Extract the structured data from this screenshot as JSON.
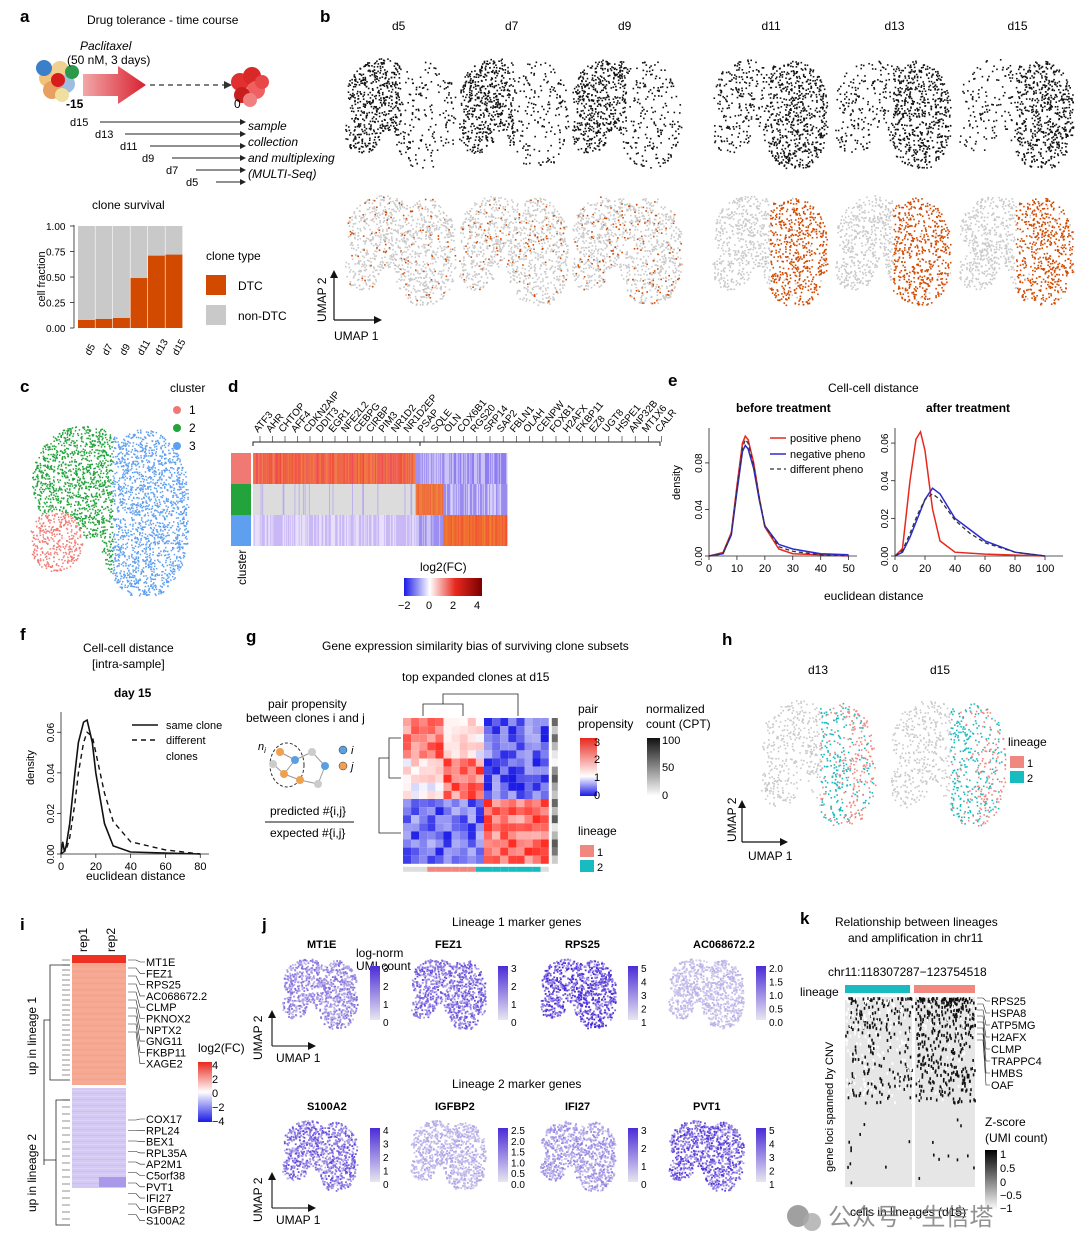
{
  "colors": {
    "dtc": "#d24a00",
    "nondtc": "#c9c9c9",
    "cl1": "#f07a73",
    "cl2": "#22a33b",
    "cl3": "#5e9ff0",
    "lin1": "#f08880",
    "lin2": "#18bcc0",
    "red": "#e8281e",
    "blue": "#2b2bd4",
    "purple": "#6a3fe0"
  },
  "panels": {
    "a": "a",
    "b": "b",
    "c": "c",
    "d": "d",
    "e": "e",
    "f": "f",
    "g": "g",
    "h": "h",
    "i": "i",
    "j": "j",
    "k": "k"
  },
  "a": {
    "title": "Drug tolerance - time course",
    "drug": "Paclitaxel",
    "dose": "(50 nM, 3 days)",
    "start": "-15",
    "end": "0",
    "days": [
      "d15",
      "d13",
      "d11",
      "d9",
      "d7",
      "d5"
    ],
    "collection": [
      "sample",
      "collection",
      "and multiplexing",
      "(MULTI-Seq)"
    ],
    "chart_data": {
      "type": "bar",
      "title": "clone survival",
      "ylabel": "cell fraction",
      "categories": [
        "d5",
        "d7",
        "d9",
        "d11",
        "d13",
        "d15"
      ],
      "series": [
        {
          "name": "DTC",
          "values": [
            0.08,
            0.09,
            0.1,
            0.49,
            0.71,
            0.72
          ]
        },
        {
          "name": "non-DTC",
          "values": [
            0.92,
            0.91,
            0.9,
            0.51,
            0.29,
            0.28
          ]
        }
      ],
      "yticks": [
        "0.00",
        "0.25",
        "0.50",
        "0.75",
        "1.00"
      ],
      "ylim": [
        0,
        1
      ]
    },
    "legend_title": "clone type",
    "legend": [
      "DTC",
      "non-DTC"
    ]
  },
  "b": {
    "days": [
      "d5",
      "d7",
      "d9",
      "d11",
      "d13",
      "d15"
    ],
    "umap1": "UMAP 1",
    "umap2": "UMAP 2"
  },
  "c": {
    "legend_title": "cluster",
    "clusters": [
      "1",
      "2",
      "3"
    ]
  },
  "d": {
    "genes_left": [
      "ATF3",
      "AHR",
      "CHTOP",
      "AFF4",
      "CDKN2AIP",
      "DDIT3",
      "EGR1",
      "NFE2L2",
      "CEBPG",
      "CIRBP",
      "PIM3",
      "NR1D2",
      "NR1D2EP"
    ],
    "genes_right": [
      "PSAP",
      "SQLE",
      "OLN",
      "COX6B1",
      "RGS20",
      "SRP14",
      "SAP2",
      "FBLN1",
      "OLAH",
      "CENPW",
      "FOXB1",
      "H2AFX",
      "FKBP11",
      "EZ8",
      "UGT8",
      "HSPE1",
      "ANP32B",
      "MT1X6",
      "CALR"
    ],
    "ylabel": "cluster",
    "legend_title": "log2(FC)",
    "ticks": [
      "−2",
      "0",
      "2",
      "4"
    ]
  },
  "e": {
    "title": "Cell-cell distance",
    "sub1": "before treatment",
    "sub2": "after treatment",
    "legend": [
      "positive pheno",
      "negative pheno",
      "different pheno"
    ],
    "xlabel": "euclidean distance",
    "ylabel": "density",
    "chart_data": [
      {
        "type": "line",
        "title": "before treatment",
        "xticks": [
          "0",
          "10",
          "20",
          "30",
          "40",
          "50"
        ],
        "yticks": [
          "0.00",
          "0.04",
          "0.08"
        ],
        "series": [
          {
            "name": "positive pheno",
            "x": [
              0,
              5,
              8,
              10,
              12,
              13,
              14,
              16,
              18,
              20,
              25,
              30,
              40,
              50
            ],
            "y": [
              0,
              0.003,
              0.02,
              0.06,
              0.097,
              0.103,
              0.1,
              0.08,
              0.05,
              0.025,
              0.006,
              0.002,
              0.001,
              0
            ]
          },
          {
            "name": "negative pheno",
            "x": [
              0,
              5,
              8,
              10,
              12,
              13,
              14,
              16,
              18,
              20,
              25,
              30,
              40,
              50
            ],
            "y": [
              0,
              0.002,
              0.018,
              0.055,
              0.09,
              0.095,
              0.092,
              0.075,
              0.048,
              0.026,
              0.01,
              0.006,
              0.002,
              0.001
            ]
          },
          {
            "name": "different pheno",
            "x": [
              0,
              5,
              8,
              10,
              12,
              13,
              14,
              16,
              18,
              20,
              25,
              30,
              40,
              50
            ],
            "y": [
              0,
              0.002,
              0.019,
              0.058,
              0.093,
              0.1,
              0.097,
              0.078,
              0.05,
              0.026,
              0.008,
              0.004,
              0.001,
              0
            ]
          }
        ]
      },
      {
        "type": "line",
        "title": "after treatment",
        "xticks": [
          "0",
          "20",
          "40",
          "60",
          "80",
          "100"
        ],
        "yticks": [
          "0.00",
          "0.02",
          "0.04",
          "0.06"
        ],
        "series": [
          {
            "name": "positive pheno",
            "x": [
              0,
              5,
              10,
              14,
              17,
              20,
              25,
              30,
              40,
              60,
              100
            ],
            "y": [
              0,
              0.004,
              0.04,
              0.062,
              0.066,
              0.056,
              0.025,
              0.008,
              0.002,
              0.001,
              0
            ]
          },
          {
            "name": "negative pheno",
            "x": [
              0,
              5,
              10,
              15,
              20,
              25,
              30,
              40,
              50,
              60,
              80,
              100
            ],
            "y": [
              0,
              0.002,
              0.01,
              0.02,
              0.03,
              0.036,
              0.033,
              0.02,
              0.014,
              0.008,
              0.002,
              0
            ]
          },
          {
            "name": "different pheno",
            "x": [
              0,
              5,
              10,
              15,
              20,
              25,
              30,
              40,
              50,
              60,
              80,
              100
            ],
            "y": [
              0,
              0.003,
              0.012,
              0.022,
              0.03,
              0.033,
              0.03,
              0.019,
              0.012,
              0.007,
              0.002,
              0
            ]
          }
        ]
      }
    ]
  },
  "f": {
    "title": "Cell-cell distance",
    "subtitle": "[intra-sample]",
    "day": "day 15",
    "legend": [
      "same clone",
      "different",
      "clones"
    ],
    "xlabel": "euclidean distance",
    "ylabel": "density",
    "chart_data": {
      "type": "line",
      "xticks": [
        "0",
        "20",
        "40",
        "60",
        "80"
      ],
      "yticks": [
        "0.00",
        "0.02",
        "0.04",
        "0.06"
      ],
      "series": [
        {
          "name": "same clone",
          "x": [
            0,
            1,
            2,
            3,
            5,
            8,
            10,
            13,
            15,
            18,
            20,
            25,
            30,
            40,
            80
          ],
          "y": [
            0,
            0.006,
            0.001,
            0.004,
            0.015,
            0.04,
            0.055,
            0.065,
            0.066,
            0.055,
            0.04,
            0.015,
            0.004,
            0.001,
            0
          ]
        },
        {
          "name": "different clones",
          "x": [
            0,
            3,
            5,
            8,
            10,
            13,
            15,
            18,
            20,
            25,
            30,
            40,
            60,
            80
          ],
          "y": [
            0,
            0.002,
            0.008,
            0.025,
            0.04,
            0.055,
            0.06,
            0.058,
            0.05,
            0.03,
            0.016,
            0.006,
            0.002,
            0
          ]
        }
      ]
    }
  },
  "g": {
    "title": "Gene expression similarity bias of surviving clone subsets",
    "subtitle": "top expanded clones at d15",
    "pair": [
      "pair propensity",
      "between clones i and j"
    ],
    "ni": "n",
    "ni_sub": "i",
    "i": "i",
    "j": "j",
    "num": "predicted #{i,j}",
    "den": "expected #{i,j}",
    "leg_pp": [
      "pair",
      "propensity"
    ],
    "pp_ticks": [
      "3",
      "2",
      "1",
      "0"
    ],
    "leg_cnt": [
      "normalized",
      "count (CPT)"
    ],
    "cnt_ticks": [
      "100",
      "50",
      "0"
    ],
    "lineage_title": "lineage",
    "lineages": [
      "1",
      "2"
    ]
  },
  "h": {
    "days": [
      "d13",
      "d15"
    ],
    "legend_title": "lineage",
    "lineages": [
      "1",
      "2"
    ],
    "umap1": "UMAP 1",
    "umap2": "UMAP 2"
  },
  "i": {
    "cols": [
      "rep1",
      "rep2"
    ],
    "genes_top": [
      "MT1E",
      "FEZ1",
      "RPS25",
      "AC068672.2",
      "CLMP",
      "PKNOX2",
      "NPTX2",
      "GNG11",
      "FKBP11",
      "XAGE2"
    ],
    "genes_bottom": [
      "COX17",
      "RPL24",
      "BEX1",
      "RPL35A",
      "AP2M1",
      "C5orf38",
      "PVT1",
      "IFI27",
      "IGFBP2",
      "S100A2"
    ],
    "row1": "up in lineage 1",
    "row2": "up in lineage 2",
    "legend_title": "log2(FC)",
    "ticks": [
      "4",
      "2",
      "0",
      "−2",
      "−4"
    ]
  },
  "j": {
    "title1": "Lineage 1 marker genes",
    "title2": "Lineage 2 marker genes",
    "leg": [
      "log-norm",
      "UMI count"
    ],
    "genes1": [
      {
        "name": "MT1E",
        "ticks": [
          "3",
          "2",
          "1",
          "0"
        ]
      },
      {
        "name": "FEZ1",
        "ticks": [
          "3",
          "2",
          "1",
          "0"
        ]
      },
      {
        "name": "RPS25",
        "ticks": [
          "5",
          "4",
          "3",
          "2",
          "1"
        ]
      },
      {
        "name": "AC068672.2",
        "ticks": [
          "2.0",
          "1.5",
          "1.0",
          "0.5",
          "0.0"
        ]
      }
    ],
    "genes2": [
      {
        "name": "S100A2",
        "ticks": [
          "4",
          "3",
          "2",
          "1",
          "0"
        ]
      },
      {
        "name": "IGFBP2",
        "ticks": [
          "2.5",
          "2.0",
          "1.5",
          "1.0",
          "0.5",
          "0.0"
        ]
      },
      {
        "name": "IFI27",
        "ticks": [
          "3",
          "2",
          "1",
          "0"
        ]
      },
      {
        "name": "PVT1",
        "ticks": [
          "5",
          "4",
          "3",
          "2",
          "1"
        ]
      }
    ],
    "umap1": "UMAP 1",
    "umap2": "UMAP 2"
  },
  "k": {
    "title": [
      "Relationship between lineages",
      "and amplification in chr11"
    ],
    "locus": "chr11:118307287−123754518",
    "lineage": "lineage",
    "genes": [
      "RPS25",
      "HSPA8",
      "ATP5MG",
      "H2AFX",
      "CLMP",
      "TRAPPC4",
      "HMBS",
      "OAF"
    ],
    "ylabel": "gene loci spanned by CNV",
    "xlabel": "cells in lineages (d15)",
    "legend_title": [
      "Z-score",
      "(UMI count)"
    ],
    "ticks": [
      "1",
      "0.5",
      "0",
      "−0.5",
      "−1"
    ]
  },
  "watermark": "公众号 · 生信塔"
}
